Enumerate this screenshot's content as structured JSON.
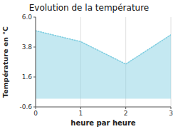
{
  "chart_data": {
    "type": "area",
    "title": "Evolution de la température",
    "xlabel": "heure par heure",
    "ylabel": "Température en °C",
    "x": [
      0,
      1,
      2,
      3
    ],
    "values": [
      5.0,
      4.2,
      2.55,
      4.7
    ],
    "xlim": [
      0,
      3
    ],
    "ylim": [
      -0.6,
      6.0
    ],
    "xticks": [
      0,
      1,
      2,
      3
    ],
    "yticks": [
      -0.6,
      1.6,
      3.8,
      {
        "value": 6.0,
        "label": "6.0"
      }
    ],
    "color": "#7dcde0",
    "line_style": "dotted",
    "grid": "x"
  }
}
